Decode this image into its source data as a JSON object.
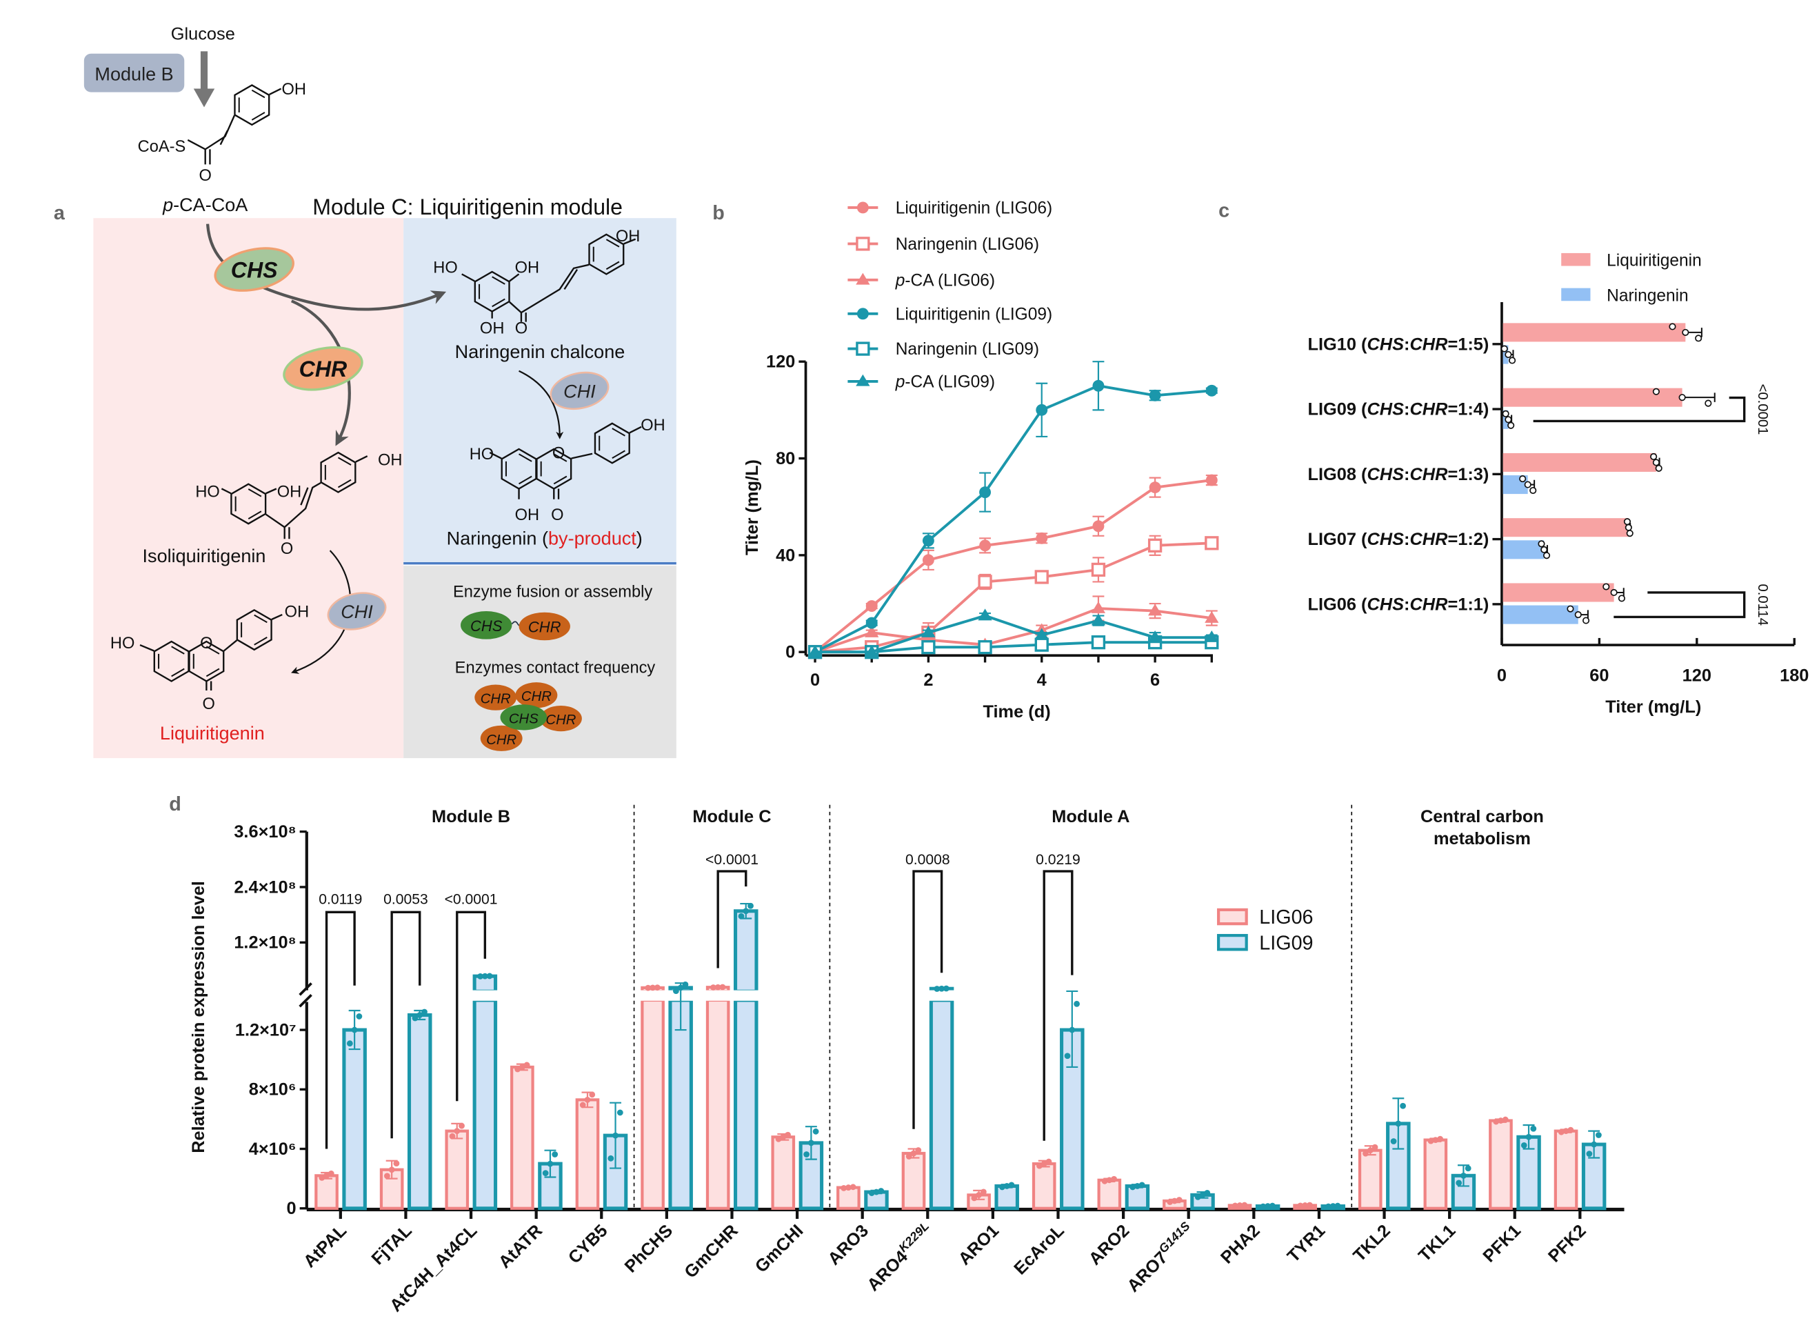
{
  "panel_labels": {
    "a": "a",
    "b": "b",
    "c": "c",
    "d": "d"
  },
  "panel_a": {
    "glucose": "Glucose",
    "module_b": "Module B",
    "pca_coa_prefix": "p",
    "pca_coa_rest": "-CA-CoA",
    "coa_s": "CoA-S",
    "title": "Module C: Liquiritigenin module",
    "enzymes": {
      "chs": "CHS",
      "chr": "CHR",
      "chi": "CHI"
    },
    "naringenin_chalcone": "Naringenin chalcone",
    "naringenin_open": "Naringenin (",
    "by_product": "by-product",
    "naringenin_close": ")",
    "isoliquiritigenin": "Isoliquiritigenin",
    "liquiritigenin": "Liquiritigenin",
    "fusion_title": "Enzyme fusion or assembly",
    "contact_title": "Enzymes contact frequency",
    "atom_labels": {
      "oh": "OH",
      "ho": "HO",
      "o": "O"
    },
    "colors": {
      "host_bg": "#fde9e9",
      "byproduct_bg": "#dde8f5",
      "strategy_bg": "#e4e4e4",
      "divider": "#4a7cc4",
      "chs_fill": "#a6c79c",
      "chr_fill": "#f2a97c",
      "chi_fill": "#aab5c9",
      "module_b_fill": "#aab5c9",
      "fusion_chs": "#3f8a35",
      "fusion_chr": "#c8621a",
      "highlight_text": "#e02020"
    }
  },
  "chart_data": [
    {
      "panel": "b",
      "type": "line",
      "xlabel": "Time (d)",
      "ylabel": "Titer (mg/L)",
      "xlim": [
        0,
        7
      ],
      "ylim": [
        0,
        120
      ],
      "xticks": [
        "0",
        "2",
        "4",
        "6"
      ],
      "yticks": [
        "0",
        "40",
        "80",
        "120"
      ],
      "legend_position": "top-left",
      "x": [
        0,
        1,
        2,
        3,
        4,
        5,
        6,
        7
      ],
      "series": [
        {
          "name_prefix": "",
          "name_italic": "",
          "name": "Liquiritigenin (LIG06)",
          "marker": "circle",
          "color": "#f08383",
          "values": [
            0,
            19,
            38,
            44,
            47,
            52,
            68,
            71
          ],
          "error": [
            0,
            1,
            4,
            3,
            2,
            4,
            4,
            2
          ]
        },
        {
          "name_italic": "",
          "name": "Naringenin (LIG06)",
          "marker": "open-square",
          "color": "#f08383",
          "values": [
            0,
            2,
            8,
            29,
            31,
            34,
            44,
            45
          ],
          "error": [
            0,
            1,
            4,
            3,
            1,
            5,
            4,
            1
          ]
        },
        {
          "name_italic": "p",
          "name": "-CA (LIG06)",
          "marker": "triangle",
          "color": "#f08383",
          "values": [
            0,
            8,
            5,
            3,
            9,
            18,
            17,
            14
          ],
          "error": [
            0,
            1,
            1,
            1,
            2,
            5,
            3,
            3
          ]
        },
        {
          "name_italic": "",
          "name": "Liquiritigenin (LIG09)",
          "marker": "circle",
          "color": "#1b97ab",
          "values": [
            0,
            12,
            46,
            66,
            100,
            110,
            106,
            108
          ],
          "error": [
            0,
            1,
            3,
            8,
            11,
            10,
            2,
            1
          ]
        },
        {
          "name_italic": "",
          "name": "Naringenin (LIG09)",
          "marker": "open-square",
          "color": "#1b97ab",
          "values": [
            0,
            0,
            2,
            2,
            3,
            4,
            4,
            4
          ],
          "error": [
            0,
            0,
            0,
            0,
            0,
            0,
            0,
            0
          ]
        },
        {
          "name_italic": "p",
          "name": "-CA (LIG09)",
          "marker": "triangle",
          "color": "#1b97ab",
          "values": [
            0,
            0,
            8,
            15,
            7,
            13,
            6,
            6
          ],
          "error": [
            0,
            0,
            1,
            1,
            1,
            2,
            2,
            1
          ]
        }
      ]
    },
    {
      "panel": "c",
      "type": "bar",
      "orientation": "horizontal",
      "xlabel": "Titer (mg/L)",
      "xlim": [
        0,
        180
      ],
      "xticks": [
        "0",
        "60",
        "120",
        "180"
      ],
      "legend_position": "top",
      "categories": [
        {
          "strain": "LIG10 (",
          "a": "CHS",
          "sep": ":",
          "b": "CHR",
          "ratio": "=1:5)"
        },
        {
          "strain": "LIG09 (",
          "a": "CHS",
          "sep": ":",
          "b": "CHR",
          "ratio": "=1:4)"
        },
        {
          "strain": "LIG08 (",
          "a": "CHS",
          "sep": ":",
          "b": "CHR",
          "ratio": "=1:3)"
        },
        {
          "strain": "LIG07 (",
          "a": "CHS",
          "sep": ":",
          "b": "CHR",
          "ratio": "=1:2)"
        },
        {
          "strain": "LIG06 (",
          "a": "CHS",
          "sep": ":",
          "b": "CHR",
          "ratio": "=1:1)"
        }
      ],
      "series": [
        {
          "name": "Liquiritigenin",
          "color": "#f7a3a3",
          "values": [
            113,
            111,
            95,
            78,
            69
          ],
          "error": [
            10,
            20,
            2,
            1,
            6
          ]
        },
        {
          "name": "Naringenin",
          "color": "#93c0f4",
          "values": [
            4,
            4,
            16,
            26,
            47
          ],
          "error": [
            3,
            2,
            4,
            2,
            6
          ]
        }
      ],
      "significance": [
        {
          "category_index": 1,
          "label": "<0.0001"
        },
        {
          "category_index": 4,
          "label": "0.0114"
        }
      ]
    },
    {
      "panel": "d",
      "type": "bar",
      "ylabel": "Relative protein expression level",
      "y_axis_break": [
        14000000,
        14000000
      ],
      "yticks": [
        {
          "value": 0,
          "label": "0"
        },
        {
          "value": 4000000,
          "label": "4×10⁶"
        },
        {
          "value": 8000000,
          "label": "8×10⁶"
        },
        {
          "value": 12000000,
          "label": "1.2×10⁷"
        },
        {
          "value": 120000000,
          "label": "1.2×10⁸"
        },
        {
          "value": 240000000,
          "label": "2.4×10⁸"
        },
        {
          "value": 360000000,
          "label": "3.6×10⁸"
        }
      ],
      "legend_position": "center-right",
      "groups": [
        {
          "name": "Module B",
          "name2": "",
          "from": 0,
          "to": 4
        },
        {
          "name": "Module C",
          "name2": "",
          "from": 5,
          "to": 7
        },
        {
          "name": "Module A",
          "name2": "",
          "from": 8,
          "to": 15
        },
        {
          "name": "Central carbon",
          "name2": "metabolism",
          "from": 16,
          "to": 19
        }
      ],
      "categories": [
        {
          "label": "AtPAL",
          "sup": ""
        },
        {
          "label": "FjTAL",
          "sup": ""
        },
        {
          "label": "AtC4H_At4CL",
          "sup": ""
        },
        {
          "label": "AtATR",
          "sup": ""
        },
        {
          "label": "CYB5",
          "sup": ""
        },
        {
          "label": "PhCHS",
          "sup": ""
        },
        {
          "label": "GmCHR",
          "sup": ""
        },
        {
          "label": "GmCHI",
          "sup": ""
        },
        {
          "label": "ARO3",
          "sup": ""
        },
        {
          "label": "ARO4",
          "sup": "K229L"
        },
        {
          "label": "ARO1",
          "sup": ""
        },
        {
          "label": "EcAroL",
          "sup": ""
        },
        {
          "label": "ARO2",
          "sup": ""
        },
        {
          "label": "ARO7",
          "sup": "G141S"
        },
        {
          "label": "PHA2",
          "sup": ""
        },
        {
          "label": "TYR1",
          "sup": ""
        },
        {
          "label": "TKL2",
          "sup": ""
        },
        {
          "label": "TKL1",
          "sup": ""
        },
        {
          "label": "PFK1",
          "sup": ""
        },
        {
          "label": "PFK2",
          "sup": ""
        }
      ],
      "series": [
        {
          "name": "LIG06",
          "stroke": "#f08383",
          "fill": "#fde0e0",
          "values": [
            2200000,
            2600000,
            5200000,
            9500000,
            7300000,
            22000000,
            23000000,
            4800000,
            1400000,
            3700000,
            900000,
            3000000,
            1900000,
            500000,
            200000,
            200000,
            3900000,
            4600000,
            5900000,
            5200000
          ],
          "error": [
            200000,
            600000,
            500000,
            200000,
            500000,
            500000,
            500000,
            200000,
            50000,
            300000,
            300000,
            200000,
            100000,
            100000,
            30000,
            30000,
            300000,
            100000,
            100000,
            100000
          ]
        },
        {
          "name": "LIG09",
          "stroke": "#1b97ab",
          "fill": "#cfe2f6",
          "values": [
            12000000,
            13000000,
            47000000,
            3000000,
            4900000,
            22000000,
            188000000,
            4400000,
            1100000,
            20000000,
            1500000,
            12000000,
            1500000,
            900000,
            150000,
            150000,
            5700000,
            2200000,
            4800000,
            4300000
          ],
          "error": [
            1300000,
            300000,
            500000,
            900000,
            2200000,
            10000000,
            16000000,
            1100000,
            100000,
            500000,
            100000,
            2500000,
            100000,
            200000,
            30000,
            30000,
            1700000,
            700000,
            800000,
            900000
          ]
        }
      ],
      "significance": [
        {
          "category_index": 0,
          "label": "0.0119"
        },
        {
          "category_index": 1,
          "label": "0.0053"
        },
        {
          "category_index": 2,
          "label": "<0.0001"
        },
        {
          "category_index": 6,
          "label": "<0.0001"
        },
        {
          "category_index": 9,
          "label": "0.0008"
        },
        {
          "category_index": 11,
          "label": "0.0219"
        }
      ]
    }
  ]
}
